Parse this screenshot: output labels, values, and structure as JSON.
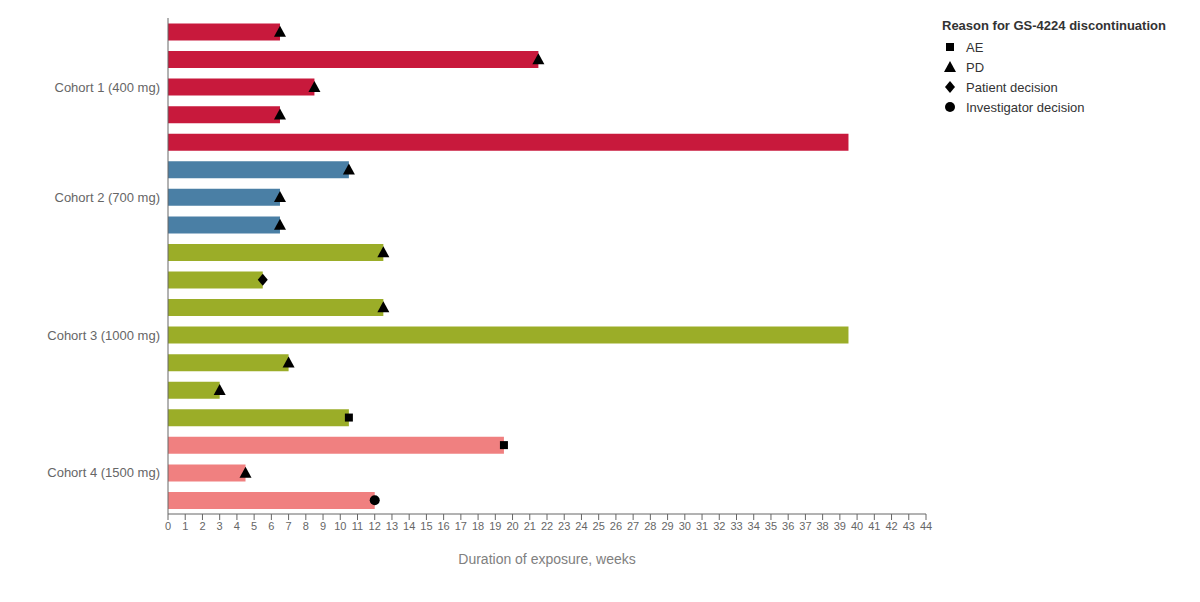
{
  "chart_data": {
    "type": "bar",
    "orientation": "horizontal",
    "xlabel": "Duration of exposure, weeks",
    "legend_title": "Reason for GS-4224 discontinuation",
    "legend": "upper right",
    "categories": [
      null,
      null,
      "Cohort 1 (400 mg)",
      null,
      null,
      null,
      "Cohort 2 (700 mg)",
      null,
      null,
      null,
      null,
      "Cohort 3 (1000 mg)",
      null,
      null,
      null,
      null,
      "Cohort 4 (1500 mg)",
      null
    ],
    "xlim": [
      0,
      44
    ],
    "xticks": [
      0,
      1,
      2,
      3,
      4,
      5,
      6,
      7,
      8,
      9,
      10,
      11,
      12,
      13,
      14,
      15,
      16,
      17,
      18,
      19,
      20,
      21,
      22,
      23,
      24,
      25,
      26,
      27,
      28,
      29,
      30,
      31,
      32,
      33,
      34,
      35,
      36,
      37,
      38,
      39,
      40,
      41,
      42,
      43,
      44
    ],
    "series": [
      {
        "type": "bar",
        "values": [
          6.5,
          21.5,
          8.5,
          6.5,
          39.5,
          10.5,
          6.5,
          6.5,
          12.5,
          5.5,
          12.5,
          39.5,
          7.0,
          3.0,
          10.5,
          19.5,
          4.5,
          12.0
        ],
        "colors": [
          "#C8193C",
          "#C8193C",
          "#C8193C",
          "#C8193C",
          "#C8193C",
          "#4A7FA5",
          "#4A7FA5",
          "#4A7FA5",
          "#9BAD28",
          "#9BAD28",
          "#9BAD28",
          "#9BAD28",
          "#9BAD28",
          "#9BAD28",
          "#9BAD28",
          "#F08080",
          "#F08080",
          "#F08080"
        ]
      },
      {
        "name": "AE",
        "type": "scatter",
        "marker": "square",
        "color": "#000000",
        "values": [
          null,
          null,
          null,
          null,
          null,
          null,
          null,
          null,
          null,
          null,
          null,
          null,
          null,
          null,
          10.5,
          19.5,
          null,
          null
        ]
      },
      {
        "name": "PD",
        "type": "scatter",
        "marker": "triangle",
        "color": "#000000",
        "values": [
          6.5,
          21.5,
          8.5,
          6.5,
          null,
          10.5,
          6.5,
          6.5,
          12.5,
          null,
          12.5,
          null,
          7.0,
          3.0,
          null,
          null,
          4.5,
          null
        ]
      },
      {
        "name": "Patient decision",
        "type": "scatter",
        "marker": "diamond",
        "color": "#000000",
        "values": [
          null,
          null,
          null,
          null,
          null,
          null,
          null,
          null,
          null,
          5.5,
          null,
          null,
          null,
          null,
          null,
          null,
          null,
          null
        ]
      },
      {
        "name": "Investigator decision",
        "type": "scatter",
        "marker": "circle",
        "color": "#000000",
        "values": [
          null,
          null,
          null,
          null,
          null,
          null,
          null,
          null,
          null,
          null,
          null,
          null,
          null,
          null,
          null,
          null,
          null,
          12.0
        ]
      }
    ]
  }
}
